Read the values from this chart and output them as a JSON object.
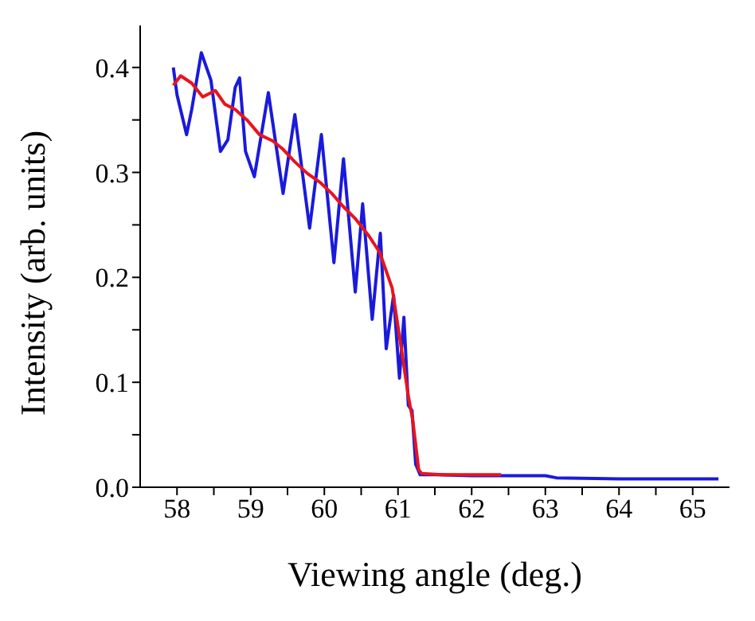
{
  "chart_data": {
    "type": "line",
    "xlabel": "Viewing angle (deg.)",
    "ylabel": "Intensity  (arb. units)",
    "xlim": [
      57.5,
      65.5
    ],
    "xticks": [
      58,
      {
        "value": 58.5,
        "label": null
      },
      59,
      {
        "value": 59.5,
        "label": null
      },
      60,
      {
        "value": 60.5,
        "label": null
      },
      61,
      {
        "value": 61.5,
        "label": null
      },
      62,
      {
        "value": 62.5,
        "label": null
      },
      63,
      {
        "value": 63.5,
        "label": null
      },
      64,
      {
        "value": 64.5,
        "label": null
      },
      65
    ],
    "ylim": [
      0,
      0.44
    ],
    "yticks": [
      {
        "value": 0,
        "label": "0.0"
      },
      {
        "value": 0.05,
        "label": null
      },
      0.1,
      {
        "value": 0.15,
        "label": null
      },
      0.2,
      {
        "value": 0.25,
        "label": null
      },
      0.3,
      {
        "value": 0.35,
        "label": null
      },
      0.4
    ],
    "grid": false,
    "legend": false,
    "marker": "none",
    "line_style": "solid",
    "series": [
      {
        "color": "#1a1adc",
        "x": [
          57.95,
          58.0,
          58.13,
          58.2,
          58.33,
          58.46,
          58.59,
          58.69,
          58.79,
          58.85,
          58.93,
          59.05,
          59.24,
          59.44,
          59.6,
          59.8,
          59.96,
          60.13,
          60.26,
          60.42,
          60.52,
          60.65,
          60.76,
          60.84,
          60.94,
          61.02,
          61.08,
          61.14,
          61.19,
          61.24,
          61.3,
          61.5,
          62.0,
          63.0,
          63.15,
          64.0,
          65.35
        ],
        "values": [
          0.4,
          0.374,
          0.336,
          0.36,
          0.414,
          0.388,
          0.32,
          0.331,
          0.381,
          0.39,
          0.32,
          0.296,
          0.376,
          0.28,
          0.355,
          0.247,
          0.336,
          0.214,
          0.313,
          0.186,
          0.27,
          0.16,
          0.242,
          0.132,
          0.183,
          0.104,
          0.162,
          0.078,
          0.073,
          0.022,
          0.012,
          0.012,
          0.011,
          0.011,
          0.009,
          0.008,
          0.008
        ]
      },
      {
        "color": "#e8141e",
        "x": [
          57.95,
          58.05,
          58.2,
          58.35,
          58.52,
          58.65,
          58.79,
          58.95,
          59.12,
          59.3,
          59.44,
          59.6,
          59.77,
          59.95,
          60.1,
          60.25,
          60.42,
          60.6,
          60.75,
          60.92,
          61.05,
          61.14,
          61.2,
          61.28,
          61.32,
          61.6,
          62.0,
          62.4
        ],
        "values": [
          0.383,
          0.392,
          0.385,
          0.372,
          0.378,
          0.365,
          0.36,
          0.35,
          0.336,
          0.33,
          0.322,
          0.31,
          0.299,
          0.29,
          0.28,
          0.268,
          0.256,
          0.24,
          0.224,
          0.19,
          0.13,
          0.087,
          0.064,
          0.017,
          0.013,
          0.012,
          0.012,
          0.012
        ]
      }
    ]
  }
}
